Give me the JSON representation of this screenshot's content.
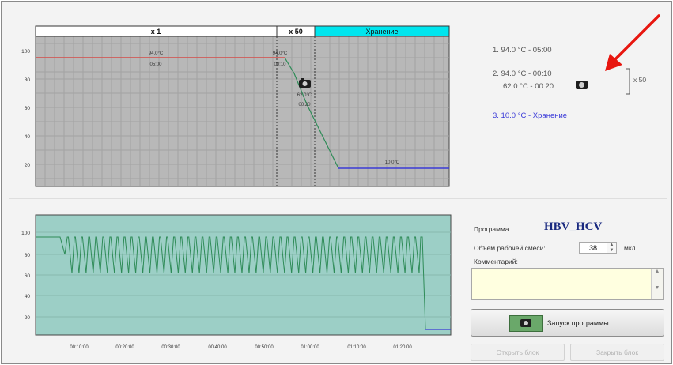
{
  "protocol_chart": {
    "segments": [
      "x 1",
      "x 50",
      "Хранение"
    ],
    "y_ticks": [
      "100",
      "80",
      "60",
      "40",
      "20"
    ],
    "step1": {
      "temp": "94,0°C",
      "time": "05:00"
    },
    "step2a": {
      "temp": "94,0°C",
      "time": "00:10"
    },
    "step2b": {
      "temp": "62,0°C",
      "time": "00:20"
    },
    "step3": {
      "temp": "10,0°C"
    }
  },
  "protocol_steps": {
    "step1": "1.  94.0 °C  -  05:00",
    "step2a": "2.  94.0 °C  -  00:10",
    "step2b": "62.0 °C  -  00:20",
    "cycles": "x 50",
    "step3": "3.  10.0 °C  -  Хранение"
  },
  "run_chart": {
    "y_ticks": [
      "100",
      "80",
      "60",
      "40",
      "20"
    ],
    "x_ticks": [
      "00:10:00",
      "00:20:00",
      "00:30:00",
      "00:40:00",
      "00:50:00",
      "01:00:00",
      "01:10:00",
      "01:20:00"
    ]
  },
  "program": {
    "label": "Программа",
    "name": "HBV_HCV",
    "volume_label": "Объем рабочей смеси:",
    "volume_value": "38",
    "volume_unit": "мкл",
    "comment_label": "Комментарий:",
    "comment_value": ""
  },
  "buttons": {
    "run": "Запуск программы",
    "open_lid": "Открыть блок",
    "close_lid": "Закрыть блок"
  },
  "colors": {
    "plot_bg": "#b8b8b8",
    "run_bg": "#9ccfc6",
    "trace": "#2e8b57",
    "hold_line": "#e05050",
    "store_line": "#3b3bd6",
    "store_header": "#00e5ee",
    "annotation_arrow": "#e8160f"
  },
  "icons": [
    "camera-icon",
    "red-arrow-annotation"
  ]
}
